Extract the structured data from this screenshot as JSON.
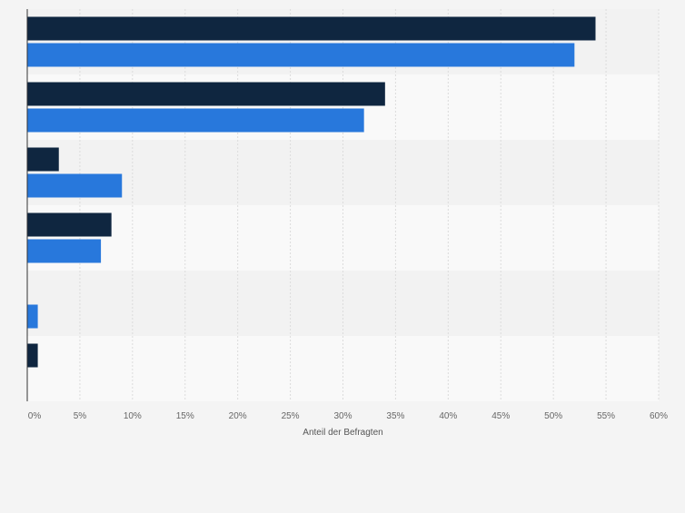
{
  "chart_data": {
    "type": "bar",
    "orientation": "horizontal",
    "categories": [
      "",
      "",
      "",
      "",
      "",
      ""
    ],
    "series": [
      {
        "color": "#0f2640",
        "values": [
          54,
          34,
          3,
          8,
          0,
          1
        ]
      },
      {
        "color": "#2878dc",
        "values": [
          52,
          32,
          9,
          7,
          1,
          null
        ]
      }
    ],
    "xlabel": "Anteil der Befragten",
    "ylabel": "",
    "title": "",
    "xlim": [
      0,
      60
    ],
    "x_ticks": [
      {
        "value": 0,
        "label": "0%"
      },
      {
        "value": 5,
        "label": "5%"
      },
      {
        "value": 10,
        "label": "10%"
      },
      {
        "value": 15,
        "label": "15%"
      },
      {
        "value": 20,
        "label": "20%"
      },
      {
        "value": 25,
        "label": "25%"
      },
      {
        "value": 30,
        "label": "30%"
      },
      {
        "value": 35,
        "label": "35%"
      },
      {
        "value": 40,
        "label": "40%"
      },
      {
        "value": 45,
        "label": "45%"
      },
      {
        "value": 50,
        "label": "50%"
      },
      {
        "value": 55,
        "label": "55%"
      },
      {
        "value": 60,
        "label": "60%"
      }
    ],
    "grid": true,
    "legend": "none",
    "colors": {
      "page_background": "#f4f4f4",
      "band_light": "#f9f9f9",
      "band_dark": "#f2f2f2",
      "gridline": "#dcdcdc",
      "tick_text": "#666666",
      "axis_label_text": "#555555"
    }
  }
}
